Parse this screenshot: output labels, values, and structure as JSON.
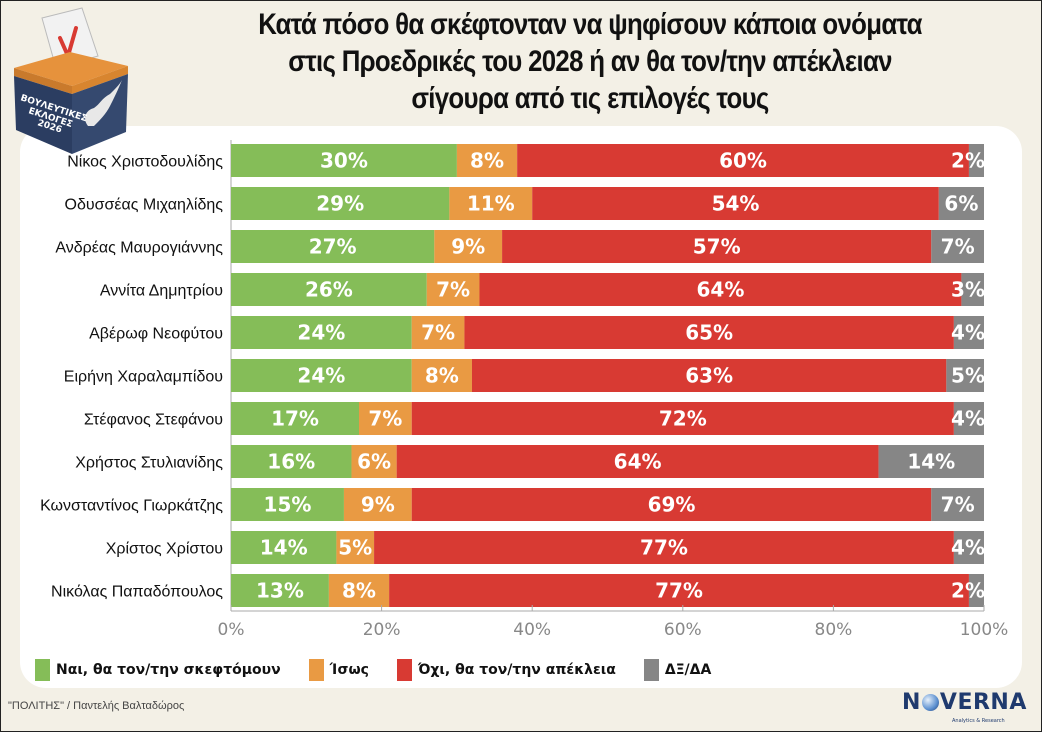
{
  "header": {
    "title_lines": [
      "Κατά πόσο θα σκέφτονταν να ψηφίσουν κάποια ονόματα",
      "στις Προεδρικές του 2028 ή αν θα τον/την απέκλειαν",
      "σίγουρα από τις επιλογές τους"
    ],
    "logo_text_lines": [
      "ΒΟΥΛΕΥΤΙΚΕΣ",
      "ΕΚΛΟΓΕΣ",
      "2026"
    ]
  },
  "colors": {
    "yes": "#85bd58",
    "maybe": "#e99a43",
    "no": "#d83a33",
    "dk": "#868686",
    "background": "#f3f0e6",
    "panel": "#ffffff"
  },
  "chart_data": {
    "type": "bar",
    "orientation": "horizontal",
    "stacked": true,
    "title": "Κατά πόσο θα σκέφτονταν να ψηφίσουν κάποια ονόματα στις Προεδρικές του 2028 ή αν θα τον/την απέκλειαν σίγουρα από τις επιλογές τους",
    "xlabel": "",
    "ylabel": "",
    "xlim": [
      0,
      100
    ],
    "x_ticks": [
      "0%",
      "20%",
      "40%",
      "60%",
      "80%",
      "100%"
    ],
    "x_tick_values": [
      0,
      20,
      40,
      60,
      80,
      100
    ],
    "grid": false,
    "legend_position": "bottom-left",
    "categories": [
      "Νίκος Χριστοδουλίδης",
      "Οδυσσέας Μιχαηλίδης",
      "Ανδρέας Μαυρογιάννης",
      "Αννίτα Δημητρίου",
      "Αβέρωφ Νεοφύτου",
      "Ειρήνη Χαραλαμπίδου",
      "Στέφανος Στεφάνου",
      "Χρήστος Στυλιανίδης",
      "Κωνσταντίνος Γιωρκάτζης",
      "Χρίστος Χρίστου",
      "Νικόλας Παπαδόπουλος"
    ],
    "series": [
      {
        "name": "Ναι, θα τον/την σκεφτόμουν",
        "key": "yes",
        "values": [
          30,
          29,
          27,
          26,
          24,
          24,
          17,
          16,
          15,
          14,
          13
        ]
      },
      {
        "name": "Ίσως",
        "key": "maybe",
        "values": [
          8,
          11,
          9,
          7,
          7,
          8,
          7,
          6,
          9,
          5,
          8
        ]
      },
      {
        "name": "Όχι, θα τον/την απέκλεια",
        "key": "no",
        "values": [
          60,
          54,
          57,
          64,
          65,
          63,
          72,
          64,
          69,
          77,
          77
        ]
      },
      {
        "name": "ΔΞ/ΔΑ",
        "key": "dk",
        "values": [
          2,
          6,
          7,
          3,
          4,
          5,
          4,
          14,
          7,
          4,
          2
        ]
      }
    ],
    "value_label_suffix": "%"
  },
  "legend": [
    {
      "label": "Ναι, θα τον/την σκεφτόμουν",
      "key": "yes"
    },
    {
      "label": "Ίσως",
      "key": "maybe"
    },
    {
      "label": "Όχι, θα τον/την απέκλεια",
      "key": "no"
    },
    {
      "label": "ΔΞ/ΔΑ",
      "key": "dk"
    }
  ],
  "footer": {
    "credit": "\"ΠΟΛΙΤΗΣ\" / Παντελής Βαλταδώρος",
    "brand_prefix": "N",
    "brand_suffix": "VERNA",
    "brand_tagline": "Analytics & Research"
  }
}
